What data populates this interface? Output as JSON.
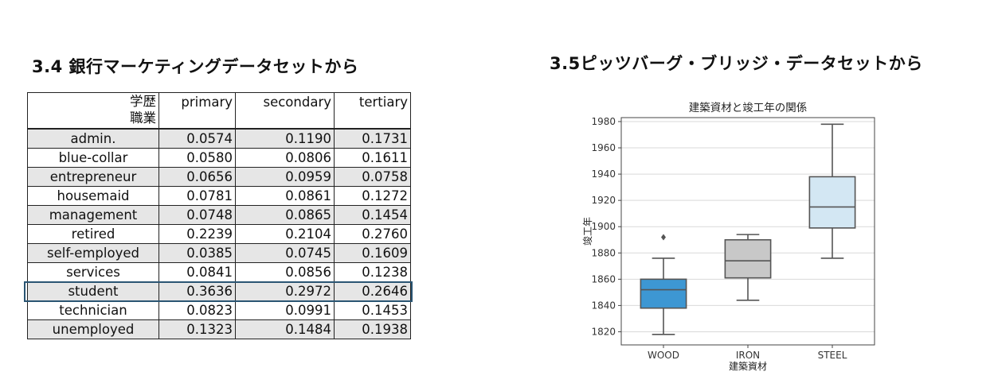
{
  "left_section": {
    "title": "3.4 銀行マーケティングデータセットから",
    "table": {
      "corner_top": "学歴",
      "corner_bottom": "職業",
      "columns": [
        "primary",
        "secondary",
        "tertiary"
      ],
      "rows": [
        {
          "label": "admin.",
          "values": [
            "0.0574",
            "0.1190",
            "0.1731"
          ],
          "shaded": true
        },
        {
          "label": "blue-collar",
          "values": [
            "0.0580",
            "0.0806",
            "0.1611"
          ],
          "shaded": false
        },
        {
          "label": "entrepreneur",
          "values": [
            "0.0656",
            "0.0959",
            "0.0758"
          ],
          "shaded": true
        },
        {
          "label": "housemaid",
          "values": [
            "0.0781",
            "0.0861",
            "0.1272"
          ],
          "shaded": false
        },
        {
          "label": "management",
          "values": [
            "0.0748",
            "0.0865",
            "0.1454"
          ],
          "shaded": true
        },
        {
          "label": "retired",
          "values": [
            "0.2239",
            "0.2104",
            "0.2760"
          ],
          "shaded": false
        },
        {
          "label": "self-employed",
          "values": [
            "0.0385",
            "0.0745",
            "0.1609"
          ],
          "shaded": true
        },
        {
          "label": "services",
          "values": [
            "0.0841",
            "0.0856",
            "0.1238"
          ],
          "shaded": false
        },
        {
          "label": "student",
          "values": [
            "0.3636",
            "0.2972",
            "0.2646"
          ],
          "shaded": true,
          "highlighted": true
        },
        {
          "label": "technician",
          "values": [
            "0.0823",
            "0.0991",
            "0.1453"
          ],
          "shaded": false
        },
        {
          "label": "unemployed",
          "values": [
            "0.1323",
            "0.1484",
            "0.1938"
          ],
          "shaded": true
        }
      ],
      "highlight_color": "#2a5573"
    }
  },
  "right_section": {
    "title": "3.5ピッツバーグ・ブリッジ・データセットから"
  },
  "chart_data": {
    "type": "box",
    "title": "建築資材と竣工年の関係",
    "xlabel": "建築資材",
    "ylabel": "竣工年",
    "ylim": [
      1810,
      1983
    ],
    "yticks": [
      1820,
      1840,
      1860,
      1880,
      1900,
      1920,
      1940,
      1960,
      1980
    ],
    "grid": true,
    "categories": [
      "WOOD",
      "IRON",
      "STEEL"
    ],
    "colors": [
      "#3d97d3",
      "#c8c8c8",
      "#d3e7f3"
    ],
    "boxes": [
      {
        "category": "WOOD",
        "whisker_low": 1818,
        "q1": 1838,
        "median": 1852,
        "q3": 1860,
        "whisker_high": 1876,
        "outliers": [
          1892
        ]
      },
      {
        "category": "IRON",
        "whisker_low": 1844,
        "q1": 1861,
        "median": 1874,
        "q3": 1890,
        "whisker_high": 1894,
        "outliers": []
      },
      {
        "category": "STEEL",
        "whisker_low": 1876,
        "q1": 1899,
        "median": 1915,
        "q3": 1938,
        "whisker_high": 1978,
        "outliers": []
      }
    ]
  }
}
